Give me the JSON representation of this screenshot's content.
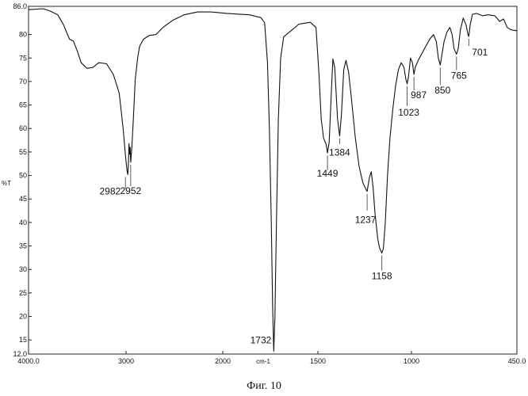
{
  "chart_data": {
    "type": "line",
    "title": "",
    "xlabel": "cm-1",
    "ylabel": "%T",
    "xlim": [
      4000.0,
      450.0
    ],
    "ylim": [
      12.0,
      86.0
    ],
    "x_reversed": true,
    "grid": false,
    "x_ticks": [
      "4000.0",
      "3000",
      "2000",
      "1500",
      "1000",
      "450.0"
    ],
    "x_tick_values": [
      4000,
      3000,
      2000,
      1500,
      1000,
      450
    ],
    "y_ticks": [
      "86.0",
      "80",
      "75",
      "70",
      "65",
      "60",
      "55",
      "50",
      "45",
      "40",
      "35",
      "30",
      "25",
      "20",
      "15",
      "12.0"
    ],
    "y_tick_values": [
      86,
      80,
      75,
      70,
      65,
      60,
      55,
      50,
      45,
      40,
      35,
      30,
      25,
      20,
      15,
      12
    ],
    "series": [
      {
        "points": [
          [
            4000,
            85.3
          ],
          [
            3850,
            85.5
          ],
          [
            3780,
            85.0
          ],
          [
            3700,
            84.2
          ],
          [
            3640,
            82.0
          ],
          [
            3580,
            79.0
          ],
          [
            3540,
            78.6
          ],
          [
            3500,
            76.5
          ],
          [
            3460,
            74.0
          ],
          [
            3400,
            72.8
          ],
          [
            3340,
            73.0
          ],
          [
            3280,
            74.0
          ],
          [
            3200,
            73.8
          ],
          [
            3130,
            71.5
          ],
          [
            3070,
            67.5
          ],
          [
            3030,
            60.0
          ],
          [
            3005,
            54.0
          ],
          [
            2990,
            51.0
          ],
          [
            2982,
            50.2
          ],
          [
            2975,
            53.0
          ],
          [
            2970,
            56.8
          ],
          [
            2962,
            54.5
          ],
          [
            2957,
            56.0
          ],
          [
            2952,
            52.8
          ],
          [
            2940,
            56.0
          ],
          [
            2925,
            62.0
          ],
          [
            2905,
            70.5
          ],
          [
            2880,
            75.0
          ],
          [
            2860,
            77.5
          ],
          [
            2820,
            79.0
          ],
          [
            2760,
            79.8
          ],
          [
            2690,
            80.0
          ],
          [
            2620,
            81.5
          ],
          [
            2520,
            83.0
          ],
          [
            2400,
            84.2
          ],
          [
            2260,
            84.8
          ],
          [
            2120,
            84.8
          ],
          [
            1980,
            84.5
          ],
          [
            1860,
            84.2
          ],
          [
            1800,
            83.6
          ],
          [
            1780,
            82.5
          ],
          [
            1765,
            74.0
          ],
          [
            1755,
            60.0
          ],
          [
            1745,
            40.0
          ],
          [
            1738,
            22.0
          ],
          [
            1732,
            12.6
          ],
          [
            1726,
            20.0
          ],
          [
            1718,
            40.0
          ],
          [
            1708,
            62.0
          ],
          [
            1696,
            75.0
          ],
          [
            1680,
            79.5
          ],
          [
            1650,
            80.5
          ],
          [
            1600,
            82.2
          ],
          [
            1540,
            82.6
          ],
          [
            1510,
            81.5
          ],
          [
            1495,
            72.0
          ],
          [
            1482,
            62.0
          ],
          [
            1470,
            58.0
          ],
          [
            1455,
            56.5
          ],
          [
            1449,
            54.8
          ],
          [
            1440,
            57.0
          ],
          [
            1428,
            68.0
          ],
          [
            1420,
            74.8
          ],
          [
            1410,
            73.0
          ],
          [
            1395,
            62.0
          ],
          [
            1384,
            58.4
          ],
          [
            1374,
            63.0
          ],
          [
            1362,
            72.5
          ],
          [
            1350,
            74.5
          ],
          [
            1336,
            72.0
          ],
          [
            1320,
            66.0
          ],
          [
            1300,
            58.0
          ],
          [
            1280,
            52.0
          ],
          [
            1260,
            48.5
          ],
          [
            1245,
            47.2
          ],
          [
            1237,
            46.6
          ],
          [
            1225,
            49.5
          ],
          [
            1215,
            50.8
          ],
          [
            1205,
            47.5
          ],
          [
            1195,
            42.0
          ],
          [
            1180,
            36.5
          ],
          [
            1170,
            34.5
          ],
          [
            1158,
            33.5
          ],
          [
            1150,
            34.5
          ],
          [
            1140,
            40.0
          ],
          [
            1128,
            50.0
          ],
          [
            1115,
            58.0
          ],
          [
            1100,
            64.0
          ],
          [
            1085,
            69.0
          ],
          [
            1070,
            72.5
          ],
          [
            1055,
            74.0
          ],
          [
            1040,
            73.0
          ],
          [
            1030,
            70.5
          ],
          [
            1023,
            69.5
          ],
          [
            1016,
            71.0
          ],
          [
            1005,
            75.0
          ],
          [
            995,
            74.0
          ],
          [
            987,
            71.5
          ],
          [
            980,
            73.0
          ],
          [
            965,
            74.5
          ],
          [
            945,
            76.0
          ],
          [
            925,
            77.5
          ],
          [
            905,
            79.0
          ],
          [
            885,
            80.0
          ],
          [
            870,
            78.5
          ],
          [
            860,
            75.0
          ],
          [
            850,
            73.5
          ],
          [
            842,
            75.5
          ],
          [
            830,
            78.5
          ],
          [
            815,
            80.5
          ],
          [
            800,
            81.5
          ],
          [
            788,
            80.0
          ],
          [
            778,
            77.0
          ],
          [
            765,
            75.8
          ],
          [
            756,
            77.0
          ],
          [
            745,
            81.0
          ],
          [
            730,
            83.5
          ],
          [
            715,
            82.0
          ],
          [
            705,
            80.0
          ],
          [
            701,
            79.6
          ],
          [
            694,
            82.0
          ],
          [
            682,
            84.3
          ],
          [
            660,
            84.5
          ],
          [
            630,
            84.0
          ],
          [
            600,
            84.2
          ],
          [
            565,
            84.0
          ],
          [
            540,
            82.8
          ],
          [
            520,
            83.3
          ],
          [
            500,
            81.5
          ],
          [
            480,
            81.0
          ],
          [
            450,
            80.8
          ]
        ]
      }
    ],
    "annotations": [
      {
        "label": "2982",
        "x": 2982,
        "y": 50.2
      },
      {
        "label": "2952",
        "x": 2952,
        "y": 52.8
      },
      {
        "label": "1732",
        "x": 1732,
        "y": 12.6
      },
      {
        "label": "1449",
        "x": 1449,
        "y": 54.8
      },
      {
        "label": "1384",
        "x": 1384,
        "y": 58.4
      },
      {
        "label": "1237",
        "x": 1237,
        "y": 46.6
      },
      {
        "label": "1158",
        "x": 1158,
        "y": 33.5
      },
      {
        "label": "1023",
        "x": 1023,
        "y": 69.5
      },
      {
        "label": "987",
        "x": 987,
        "y": 71.5
      },
      {
        "label": "850",
        "x": 850,
        "y": 73.5
      },
      {
        "label": "765",
        "x": 765,
        "y": 75.8
      },
      {
        "label": "701",
        "x": 701,
        "y": 79.6
      }
    ]
  },
  "caption": "Фиг. 10"
}
